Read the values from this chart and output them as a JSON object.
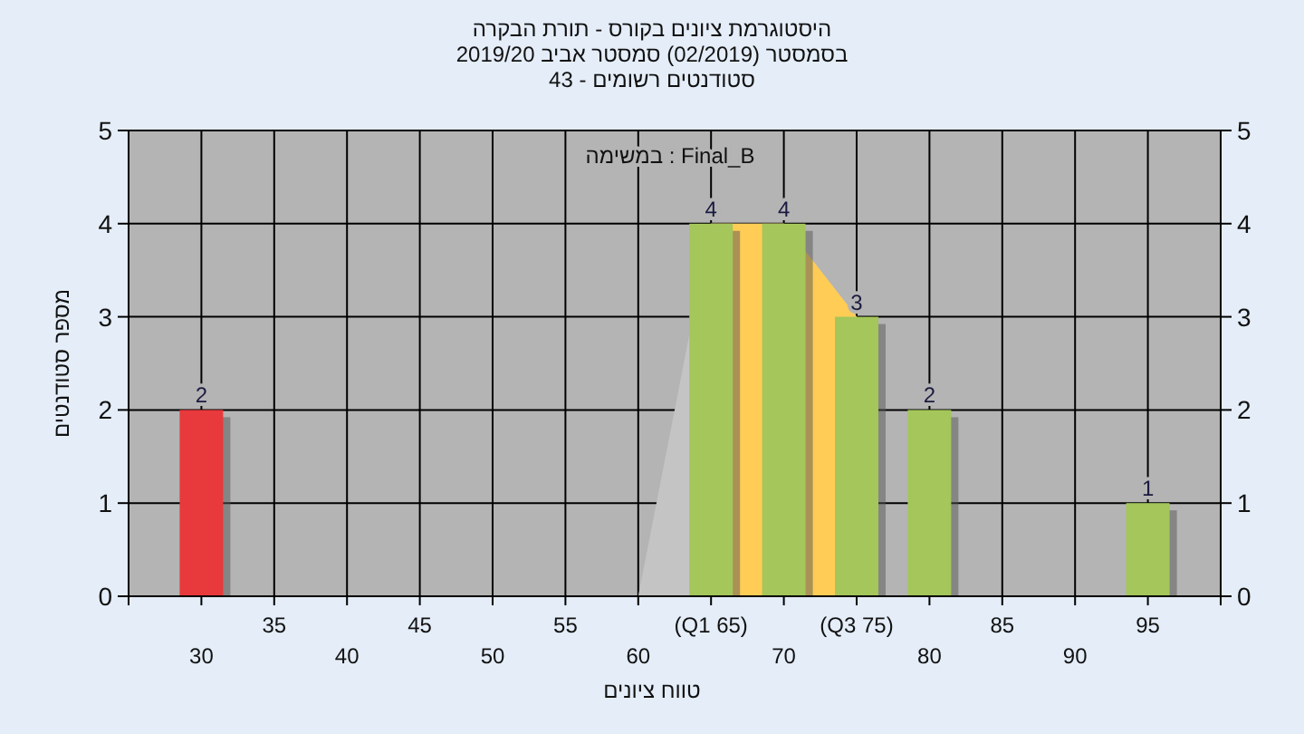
{
  "chart_data": {
    "type": "bar",
    "title": "היסטוגרמת ציונים בקורס - תורת הבקרה",
    "subtitle": "בסמסטר  (02/2019)  סמסטר אביב 2019/20",
    "annotations": [
      "סטודנטים רשומים - 43",
      "Final_B : במשימה"
    ],
    "xlabel": "טווח ציונים",
    "ylabel": "מספר סטודנטים",
    "categories": [
      "30",
      "35",
      "40",
      "45",
      "50",
      "55",
      "60",
      "(Q1 65)",
      "70",
      "(Q3 75)",
      "80",
      "85",
      "90",
      "95"
    ],
    "series": [
      {
        "type": "area",
        "color": "#c4c4c4",
        "values": [
          null,
          null,
          null,
          null,
          null,
          null,
          0,
          4,
          4,
          3,
          null,
          null,
          null,
          null
        ]
      },
      {
        "type": "area",
        "color": "#ffcc55",
        "values": [
          null,
          null,
          null,
          null,
          null,
          null,
          null,
          4,
          4,
          3,
          null,
          null,
          null,
          null
        ]
      },
      {
        "colors": [
          "#e8393c",
          "#a4c65a",
          "#a4c65a",
          "#a4c65a",
          "#a4c65a",
          "#a4c65a",
          "#a4c65a",
          "#a4c65a",
          "#a4c65a",
          "#a4c65a",
          "#a4c65a",
          "#a4c65a",
          "#a4c65a",
          "#a4c65a"
        ],
        "values": [
          2,
          0,
          0,
          0,
          0,
          0,
          0,
          4,
          4,
          3,
          2,
          0,
          0,
          1
        ],
        "value_labels": [
          "2",
          null,
          null,
          null,
          null,
          null,
          null,
          "4",
          "4",
          "3",
          "2",
          null,
          null,
          "1"
        ]
      }
    ],
    "ylim": [
      0,
      5
    ],
    "yticks": [
      0,
      1,
      2,
      3,
      4,
      5
    ],
    "y2lim": [
      0,
      5
    ],
    "y2ticks": [
      0,
      1,
      2,
      3,
      4,
      5
    ],
    "grid": true
  }
}
